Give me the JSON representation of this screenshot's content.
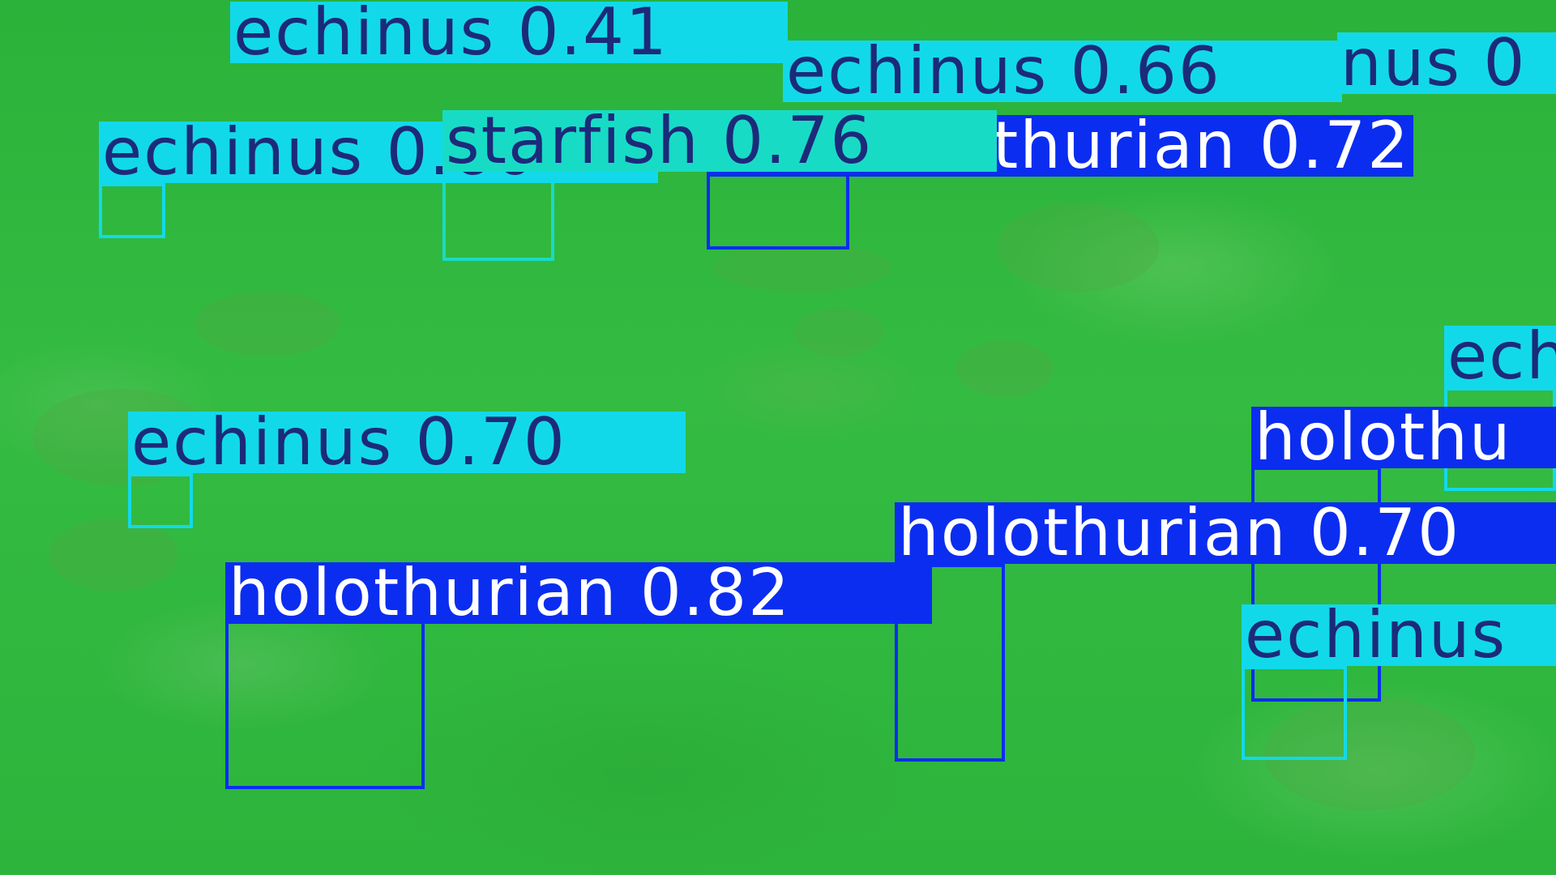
{
  "colors": {
    "water": "#2fb83e",
    "echinus": "#12d9ea",
    "starfish": "#18dbc6",
    "holothurian": "#0b2df0",
    "dark_text": "#1c2a7a",
    "light_text": "#ffffff"
  },
  "detections": {
    "d1": {
      "label": "echinus 0.41",
      "class": "echinus",
      "score": 0.41
    },
    "d2": {
      "label": "echinus 0.66",
      "class": "echinus",
      "score": 0.66
    },
    "d3": {
      "label": "nus 0",
      "class": "echinus",
      "score": null
    },
    "d4": {
      "label": "echinus 0.60",
      "class": "echinus",
      "score": 0.6
    },
    "d5": {
      "label": "starfish 0.76",
      "class": "starfish",
      "score": 0.76
    },
    "d6": {
      "label": "holothurian 0.72",
      "class": "holothurian",
      "score": 0.72
    },
    "d7": {
      "label": "echinus 0.70",
      "class": "echinus",
      "score": 0.7
    },
    "d8": {
      "label": "holothurian 0.82",
      "class": "holothurian",
      "score": 0.82
    },
    "d9": {
      "label": "holothurian 0.70",
      "class": "holothurian",
      "score": 0.7
    },
    "d10": {
      "label": "holothu",
      "class": "holothurian",
      "score": null
    },
    "d11": {
      "label": "ech",
      "class": "echinus",
      "score": null
    },
    "d12": {
      "label": "echinus",
      "class": "echinus",
      "score": null
    }
  }
}
